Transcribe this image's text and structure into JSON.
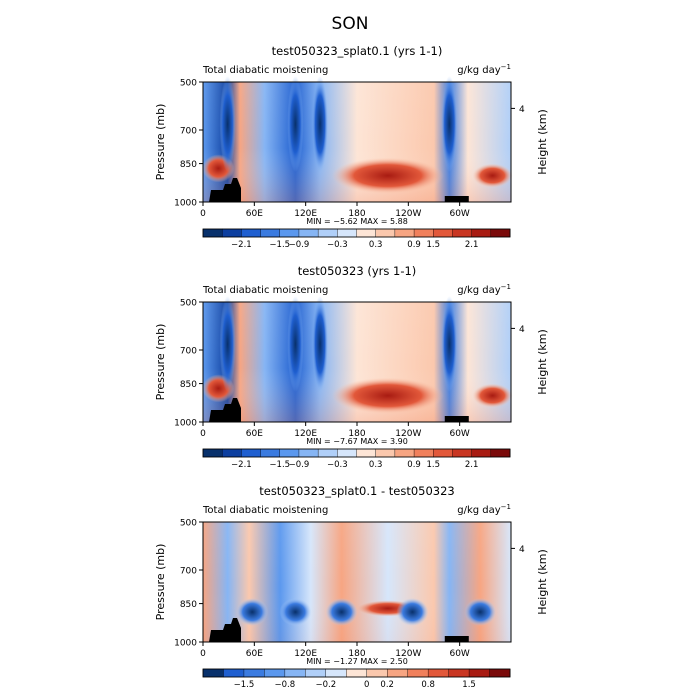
{
  "page": {
    "title": "SON"
  },
  "chart_data": [
    {
      "type": "heatmap",
      "title": "test050323_splat0.1 (yrs 1-1)",
      "left_label": "Total diabatic moistening",
      "right_label": "g/kg day",
      "right_label_exp": "−1",
      "xlabel": "",
      "ylabel": "Pressure (mb)",
      "y2label": "Height (km)",
      "x_ticks": [
        "0",
        "60E",
        "120E",
        "180",
        "120W",
        "60W"
      ],
      "y_ticks": [
        "500",
        "700",
        "850",
        "1000"
      ],
      "y2_ticks": [
        "4"
      ],
      "stats": {
        "min_label": "MIN =",
        "min": "−5.62",
        "max_label": "MAX =",
        "max": "5.88"
      },
      "colorbar_labels": [
        "−2.1",
        "−1.5",
        "−0.9",
        "−0.3",
        "0.3",
        "0.9",
        "1.5",
        "2.1"
      ],
      "colors": [
        "#08306b",
        "#0d3fa0",
        "#1f5fd0",
        "#3b7be0",
        "#5b98ee",
        "#86b5f4",
        "#b0cff8",
        "#d6e6fb",
        "#fde5d6",
        "#fbc8ad",
        "#f7a582",
        "#f0805c",
        "#e2583a",
        "#c93622",
        "#a81b12",
        "#7a0a0a"
      ]
    },
    {
      "type": "heatmap",
      "title": "test050323 (yrs 1-1)",
      "left_label": "Total diabatic moistening",
      "right_label": "g/kg day",
      "right_label_exp": "−1",
      "xlabel": "",
      "ylabel": "Pressure (mb)",
      "y2label": "Height (km)",
      "x_ticks": [
        "0",
        "60E",
        "120E",
        "180",
        "120W",
        "60W"
      ],
      "y_ticks": [
        "500",
        "700",
        "850",
        "1000"
      ],
      "y2_ticks": [
        "4"
      ],
      "stats": {
        "min_label": "MIN =",
        "min": "−7.67",
        "max_label": "MAX =",
        "max": "3.90"
      },
      "colorbar_labels": [
        "−2.1",
        "−1.5",
        "−0.9",
        "−0.3",
        "0.3",
        "0.9",
        "1.5",
        "2.1"
      ],
      "colors": [
        "#08306b",
        "#0d3fa0",
        "#1f5fd0",
        "#3b7be0",
        "#5b98ee",
        "#86b5f4",
        "#b0cff8",
        "#d6e6fb",
        "#fde5d6",
        "#fbc8ad",
        "#f7a582",
        "#f0805c",
        "#e2583a",
        "#c93622",
        "#a81b12",
        "#7a0a0a"
      ]
    },
    {
      "type": "heatmap",
      "title": "test050323_splat0.1 - test050323",
      "left_label": "Total diabatic moistening",
      "right_label": "g/kg day",
      "right_label_exp": "−1",
      "xlabel": "",
      "ylabel": "Pressure (mb)",
      "y2label": "Height (km)",
      "x_ticks": [
        "0",
        "60E",
        "120E",
        "180",
        "120W",
        "60W"
      ],
      "y_ticks": [
        "500",
        "700",
        "850",
        "1000"
      ],
      "y2_ticks": [
        "4"
      ],
      "stats": {
        "min_label": "MIN =",
        "min": "−1.27",
        "max_label": "MAX =",
        "max": "2.50"
      },
      "colorbar_labels": [
        "−1.5",
        "−0.8",
        "−0.2",
        "0",
        "0.2",
        "0.8",
        "1.5"
      ],
      "colors": [
        "#08306b",
        "#1f5fd0",
        "#3b7be0",
        "#5b98ee",
        "#86b5f4",
        "#b0cff8",
        "#d6e6fb",
        "#fde5d6",
        "#fbc8ad",
        "#f7a582",
        "#f0805c",
        "#e2583a",
        "#c93622",
        "#a81b12",
        "#7a0a0a"
      ]
    }
  ]
}
